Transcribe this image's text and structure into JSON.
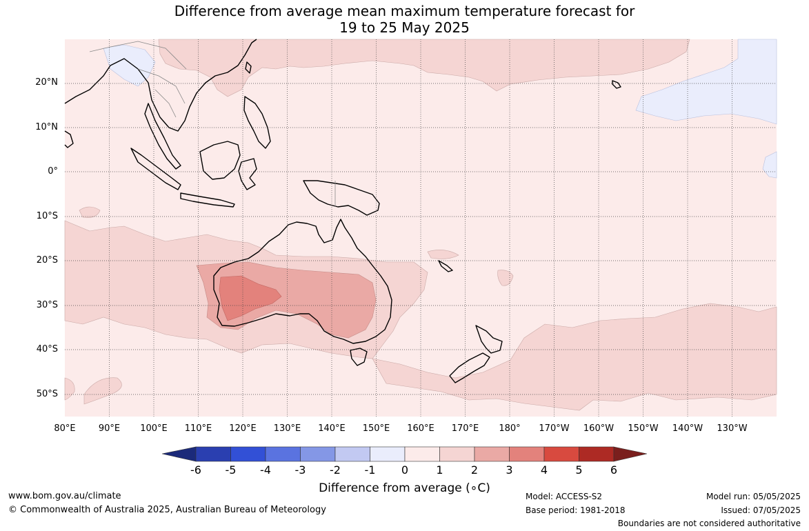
{
  "title": {
    "line1": "Difference from average mean maximum temperature forecast for",
    "line2": "19 to 25 May 2025"
  },
  "lat_labels": [
    "20°N",
    "10°N",
    "0°",
    "10°S",
    "20°S",
    "30°S",
    "40°S",
    "50°S"
  ],
  "lon_labels": [
    "80°E",
    "90°E",
    "100°E",
    "110°E",
    "120°E",
    "130°E",
    "140°E",
    "150°E",
    "160°E",
    "170°E",
    "180°",
    "170°W",
    "160°W",
    "150°W",
    "140°W",
    "130°W"
  ],
  "colorbar": {
    "ticks": [
      "-6",
      "-5",
      "-4",
      "-3",
      "-2",
      "-1",
      "0",
      "1",
      "2",
      "3",
      "4",
      "5",
      "6"
    ],
    "colors": [
      "#1b2a7a",
      "#2a3fb0",
      "#3250d6",
      "#5a73e0",
      "#8497e6",
      "#c2c9f2",
      "#eaedfc",
      "#fcebea",
      "#f5d5d3",
      "#eaa9a5",
      "#e3827c",
      "#d84a3f",
      "#ad2a24",
      "#7a1f1d"
    ],
    "label": "Difference from average (",
    "label_unit": "∘C)"
  },
  "footer": {
    "website": "www.bom.gov.au/climate",
    "copyright": "© Commonwealth of Australia 2025, Australian Bureau of Meteorology",
    "model": "Model: ACCESS-S2",
    "base_period": "Base period: 1981-2018",
    "model_run": "Model run: 05/05/2025",
    "issued": "Issued: 07/05/2025",
    "boundaries_note": "Boundaries are not considered authoritative"
  }
}
